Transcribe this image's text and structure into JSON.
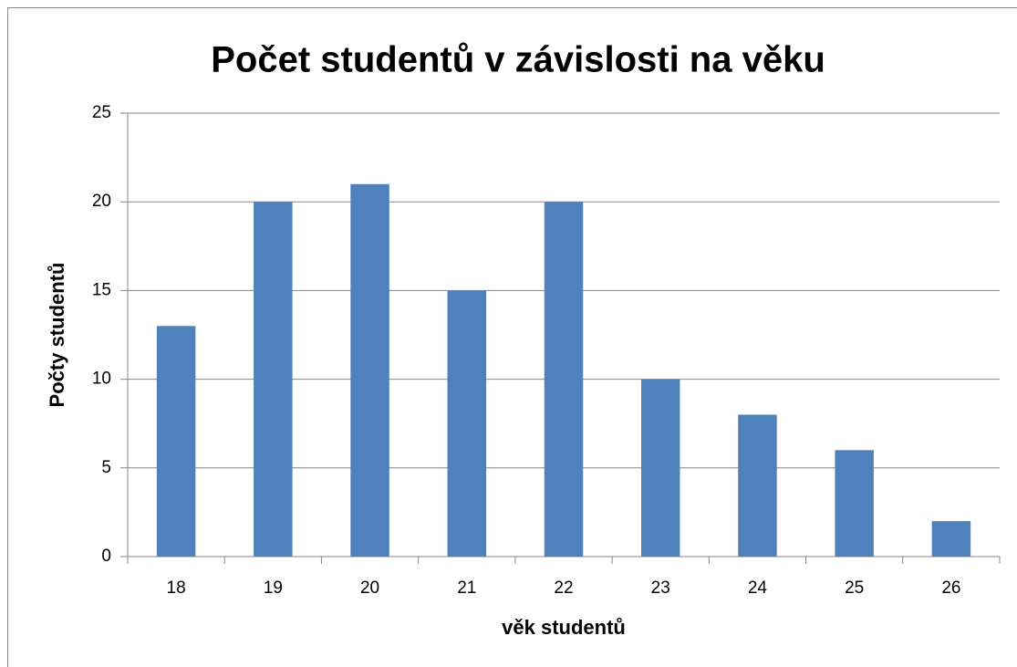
{
  "chart_data": {
    "type": "bar",
    "title": "Počet studentů v závislosti na věku",
    "x_label": "věk studentů",
    "y_label": "Počty studentů",
    "categories": [
      "18",
      "19",
      "20",
      "21",
      "22",
      "23",
      "24",
      "25",
      "26"
    ],
    "values": [
      13,
      20,
      21,
      15,
      20,
      10,
      8,
      6,
      2
    ],
    "color": "#4f81bd",
    "ylim": [
      0,
      25
    ],
    "yticks": [
      0,
      5,
      10,
      15,
      20,
      25
    ],
    "grid": true
  }
}
